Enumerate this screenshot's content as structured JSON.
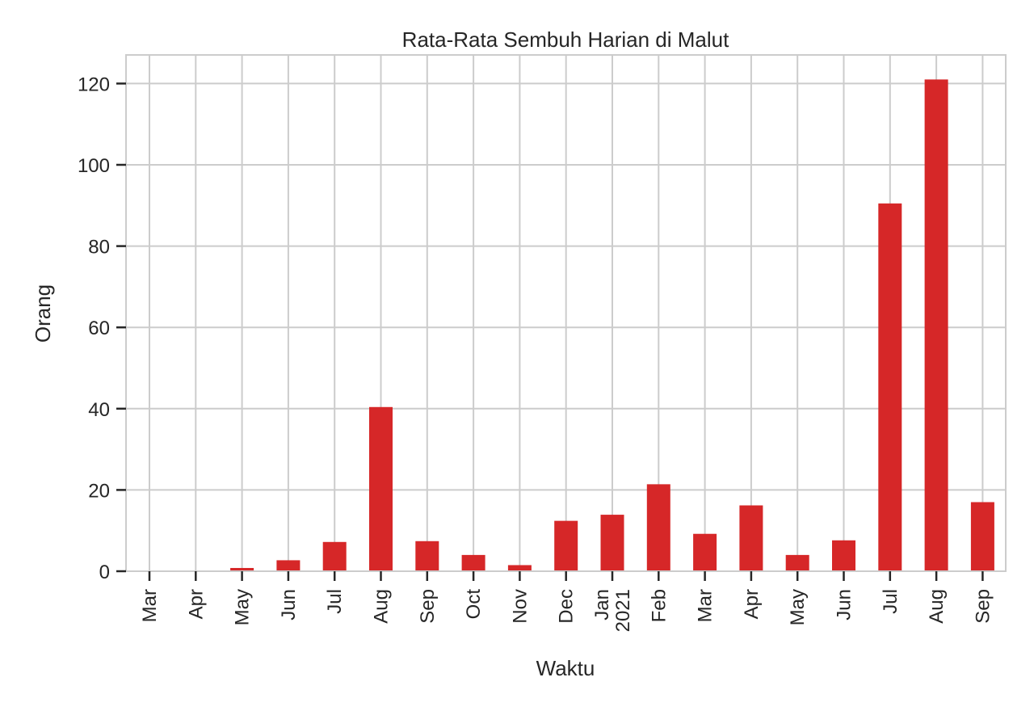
{
  "chart_data": {
    "type": "bar",
    "title": "Rata-Rata Sembuh Harian di Malut",
    "xlabel": "Waktu",
    "ylabel": "Orang",
    "ylim": [
      0,
      127
    ],
    "yticks": [
      0,
      20,
      40,
      60,
      80,
      100,
      120
    ],
    "grid": true,
    "categories": [
      [
        "Mar"
      ],
      [
        "Apr"
      ],
      [
        "May"
      ],
      [
        "Jun"
      ],
      [
        "Jul"
      ],
      [
        "Aug"
      ],
      [
        "Sep"
      ],
      [
        "Oct"
      ],
      [
        "Nov"
      ],
      [
        "Dec"
      ],
      [
        "Jan",
        "2021"
      ],
      [
        "Feb"
      ],
      [
        "Mar"
      ],
      [
        "Apr"
      ],
      [
        "May"
      ],
      [
        "Jun"
      ],
      [
        "Jul"
      ],
      [
        "Aug"
      ],
      [
        "Sep"
      ]
    ],
    "values": [
      0,
      0,
      0.8,
      2.7,
      7.2,
      40.4,
      7.4,
      4.0,
      1.5,
      12.4,
      13.9,
      21.4,
      9.2,
      16.2,
      4.0,
      7.6,
      90.5,
      121.0,
      17.0
    ],
    "colors": {
      "bar": "#d62728",
      "grid": "#cccccc",
      "spine": "#cccccc",
      "text": "#262626"
    }
  }
}
